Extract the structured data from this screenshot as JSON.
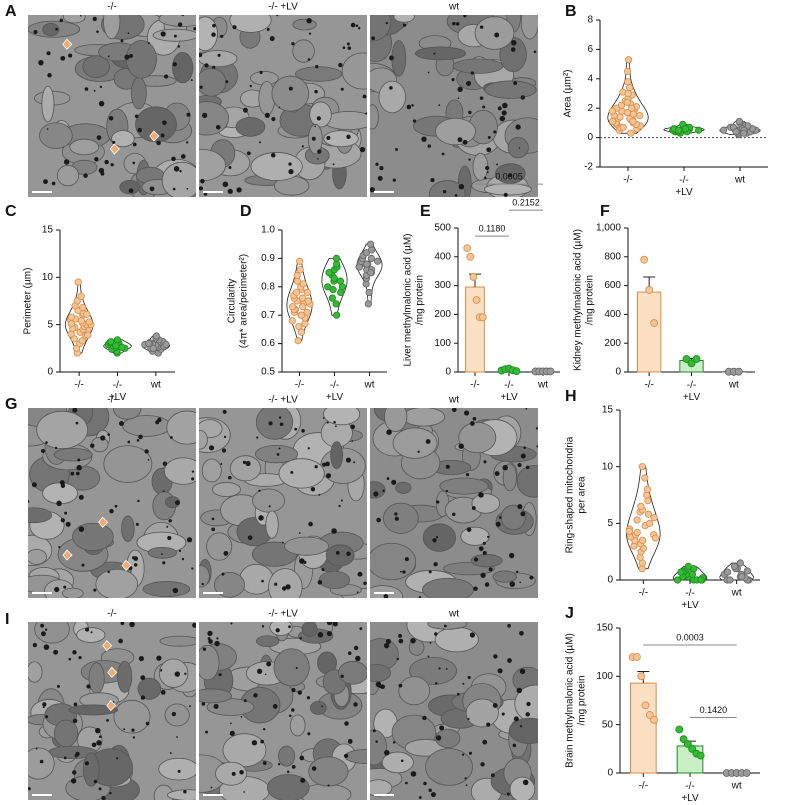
{
  "micrographs": [
    {
      "panel": "A",
      "labels": [
        "-/-",
        "-/- +LV",
        "wt"
      ]
    },
    {
      "panel": "G",
      "labels": [
        "-/-",
        "-/- +LV",
        "wt"
      ]
    },
    {
      "panel": "I",
      "labels": [
        "-/-",
        "-/- +LV",
        "wt"
      ]
    }
  ],
  "chart_data": [
    {
      "type": "violin",
      "panel": "B",
      "ylabel": [
        "Area (µm²)"
      ],
      "categories": [
        "-/-",
        "-/-\n+LV",
        "wt"
      ],
      "colors": [
        "#f7c493",
        "#33bb33",
        "#9a9a9a"
      ],
      "edges": [
        "#d98c4a",
        "#1e8a1e",
        "#666666"
      ],
      "zero_line": true,
      "ylim": [
        -2,
        8
      ],
      "yticks": [
        -2,
        0,
        2,
        4,
        6,
        8
      ],
      "values": [
        [
          0.3,
          0.5,
          0.6,
          0.7,
          0.8,
          0.9,
          1.0,
          1.0,
          1.1,
          1.2,
          1.2,
          1.3,
          1.4,
          1.5,
          1.5,
          1.6,
          1.7,
          1.8,
          1.9,
          2.0,
          2.1,
          2.2,
          2.3,
          2.5,
          2.7,
          2.9,
          3.1,
          3.4,
          3.8,
          4.5,
          5.3,
          1.3,
          1.6,
          0.9,
          2.4,
          1.1,
          3.0,
          1.8,
          0.7,
          2.0
        ],
        [
          0.3,
          0.4,
          0.4,
          0.5,
          0.5,
          0.5,
          0.6,
          0.6,
          0.6,
          0.7,
          0.7,
          0.8,
          0.5,
          0.4,
          0.6,
          0.9,
          0.5,
          0.6
        ],
        [
          0.2,
          0.3,
          0.3,
          0.4,
          0.4,
          0.5,
          0.5,
          0.5,
          0.6,
          0.6,
          0.7,
          0.7,
          0.8,
          0.9,
          1.0,
          0.4,
          0.6,
          0.5,
          0.3,
          1.1
        ]
      ]
    },
    {
      "type": "violin",
      "panel": "C",
      "ylabel": [
        "Perimeter (µm)"
      ],
      "categories": [
        "-/-",
        "-/-\n+LV",
        "wt"
      ],
      "colors": [
        "#f7c493",
        "#33bb33",
        "#9a9a9a"
      ],
      "edges": [
        "#d98c4a",
        "#1e8a1e",
        "#666666"
      ],
      "ylim": [
        0,
        15
      ],
      "yticks": [
        0,
        5,
        10,
        15
      ],
      "values": [
        [
          2.0,
          2.5,
          3.0,
          3.3,
          3.5,
          3.8,
          4.0,
          4.2,
          4.4,
          4.5,
          4.7,
          4.8,
          5.0,
          5.0,
          5.2,
          5.3,
          5.5,
          5.6,
          5.8,
          6.0,
          6.2,
          6.5,
          6.8,
          7.0,
          7.5,
          8.0,
          9.5,
          4.6,
          5.1,
          3.9,
          6.1,
          5.4
        ],
        [
          2.0,
          2.2,
          2.4,
          2.5,
          2.6,
          2.7,
          2.8,
          2.9,
          3.0,
          3.1,
          3.2,
          3.4,
          2.6,
          2.8
        ],
        [
          2.0,
          2.2,
          2.4,
          2.5,
          2.6,
          2.7,
          2.8,
          2.9,
          3.0,
          3.1,
          3.2,
          3.4,
          3.6,
          3.8,
          2.7,
          2.9,
          3.0,
          2.5
        ]
      ]
    },
    {
      "type": "violin",
      "panel": "D",
      "ylabel": [
        "Circularity",
        "(4π* area/perimeter²)"
      ],
      "categories": [
        "-/-",
        "-/-\n+LV",
        "wt"
      ],
      "colors": [
        "#f7c493",
        "#33bb33",
        "#9a9a9a"
      ],
      "edges": [
        "#d98c4a",
        "#1e8a1e",
        "#666666"
      ],
      "ylim": [
        0.5,
        1
      ],
      "yticks": [
        0.5,
        0.6,
        0.7,
        0.8,
        0.9,
        {
          "value": 1,
          "label": "1.0"
        }
      ],
      "values": [
        [
          0.61,
          0.64,
          0.66,
          0.67,
          0.68,
          0.69,
          0.7,
          0.7,
          0.71,
          0.72,
          0.72,
          0.73,
          0.74,
          0.74,
          0.75,
          0.76,
          0.76,
          0.77,
          0.78,
          0.79,
          0.8,
          0.81,
          0.82,
          0.84,
          0.86,
          0.89,
          0.73,
          0.71,
          0.75,
          0.78
        ],
        [
          0.7,
          0.74,
          0.76,
          0.78,
          0.8,
          0.8,
          0.82,
          0.82,
          0.84,
          0.85,
          0.86,
          0.87,
          0.88,
          0.9,
          0.83,
          0.79
        ],
        [
          0.74,
          0.78,
          0.81,
          0.83,
          0.84,
          0.85,
          0.86,
          0.87,
          0.87,
          0.88,
          0.88,
          0.89,
          0.89,
          0.9,
          0.91,
          0.92,
          0.93,
          0.95,
          0.86,
          0.88,
          0.9,
          0.85
        ]
      ]
    },
    {
      "type": "bar",
      "panel": "E",
      "ylabel": [
        "Liver methylmalonic acid (µM)",
        "/mg protein"
      ],
      "categories": [
        "-/-",
        "-/-\n+LV",
        "wt"
      ],
      "colors": [
        "#fbe0c4",
        "#c9efc6",
        "#e6e6e6"
      ],
      "edges": [
        "#d98c4a",
        "#1e8a1e",
        "#666666"
      ],
      "point_colors": [
        "#f7c493",
        "#33bb33",
        "#9a9a9a"
      ],
      "ylim": [
        0,
        500
      ],
      "yticks": [
        0,
        100,
        200,
        300,
        400,
        500
      ],
      "values": [
        295,
        8,
        2
      ],
      "errors": [
        45,
        3,
        1
      ],
      "points": [
        [
          430,
          400,
          330,
          250,
          190,
          190
        ],
        [
          5,
          10,
          12,
          6,
          3
        ],
        [
          2,
          2,
          2,
          2,
          2
        ]
      ],
      "comparisons": [
        {
          "groups": [
            0,
            1
          ],
          "p": "0.1180"
        },
        {
          "groups": [
            0,
            2
          ],
          "p": "0.0005"
        },
        {
          "groups": [
            1,
            2
          ],
          "p": "0.2152"
        }
      ]
    },
    {
      "type": "bar",
      "panel": "F",
      "ylabel": [
        "Kidney methylmalonic acid (µM)",
        "/mg protein"
      ],
      "categories": [
        "-/-",
        "-/-\n+LV",
        "wt"
      ],
      "colors": [
        "#fbe0c4",
        "#c9efc6",
        "#e6e6e6"
      ],
      "edges": [
        "#d98c4a",
        "#1e8a1e",
        "#666666"
      ],
      "point_colors": [
        "#f7c493",
        "#33bb33",
        "#9a9a9a"
      ],
      "ylim": [
        0,
        1000
      ],
      "yticks": [
        0,
        200,
        400,
        600,
        800,
        {
          "value": 1000,
          "label": "1,000"
        }
      ],
      "values": [
        555,
        80,
        2
      ],
      "errors": [
        105,
        15,
        1
      ],
      "points": [
        [
          780,
          570,
          340
        ],
        [
          90,
          60,
          90
        ],
        [
          2,
          2,
          2
        ]
      ],
      "comparisons": []
    },
    {
      "type": "violin",
      "panel": "H",
      "ylabel": [
        "Ring-shaped mitochondria",
        "per area"
      ],
      "categories": [
        "-/-",
        "-/-\n+LV",
        "wt"
      ],
      "colors": [
        "#f7c493",
        "#33bb33",
        "#9a9a9a"
      ],
      "edges": [
        "#d98c4a",
        "#1e8a1e",
        "#666666"
      ],
      "ylim": [
        0,
        15
      ],
      "yticks": [
        0,
        5,
        10,
        15
      ],
      "values": [
        [
          1.0,
          1.5,
          2.0,
          2.5,
          2.8,
          3.0,
          3.2,
          3.5,
          3.5,
          3.8,
          4.0,
          4.0,
          4.2,
          4.5,
          4.8,
          5.0,
          5.3,
          5.5,
          6.0,
          6.2,
          6.5,
          7.0,
          7.5,
          8.0,
          9.0,
          10.0,
          3.7,
          4.3,
          5.8
        ],
        [
          0,
          0,
          0,
          0,
          0.2,
          0.3,
          0.5,
          0.5,
          0.5,
          0.8,
          1.0,
          1.0,
          1.2,
          0,
          0.3,
          0.7
        ],
        [
          0,
          0,
          0,
          0.2,
          0.3,
          0.5,
          0.5,
          0.7,
          1.0,
          1.0,
          1.2,
          1.5,
          0.3,
          0,
          0.8
        ]
      ]
    },
    {
      "type": "bar",
      "panel": "J",
      "ylabel": [
        "Brain methylmalonic acid (µM)",
        "/mg protein"
      ],
      "categories": [
        "-/-",
        "-/-\n+LV",
        "wt"
      ],
      "colors": [
        "#fbe0c4",
        "#c9efc6",
        "#e6e6e6"
      ],
      "edges": [
        "#d98c4a",
        "#1e8a1e",
        "#666666"
      ],
      "point_colors": [
        "#f7c493",
        "#33bb33",
        "#9a9a9a"
      ],
      "ylim": [
        0,
        150
      ],
      "yticks": [
        0,
        50,
        100,
        150
      ],
      "values": [
        93,
        28,
        0
      ],
      "errors": [
        12,
        5,
        0.5
      ],
      "points": [
        [
          120,
          120,
          100,
          70,
          60,
          55
        ],
        [
          45,
          35,
          30,
          25,
          20,
          18
        ],
        [
          0,
          0,
          0,
          0,
          0
        ]
      ],
      "comparisons": [
        {
          "groups": [
            0,
            2
          ],
          "p": "0.0003"
        },
        {
          "groups": [
            1,
            2
          ],
          "p": "0.1420"
        }
      ]
    }
  ]
}
